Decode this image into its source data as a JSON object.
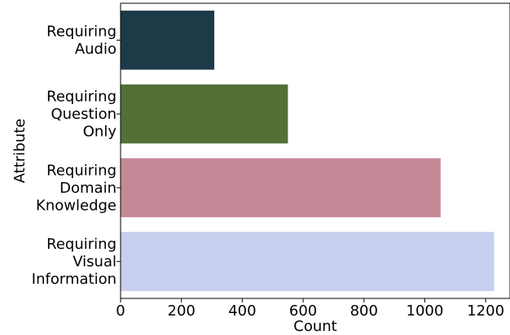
{
  "chart_data": {
    "type": "bar",
    "orientation": "horizontal",
    "categories": [
      [
        "Requiring",
        "Audio"
      ],
      [
        "Requiring",
        "Question",
        "Only"
      ],
      [
        "Requiring",
        "Domain",
        "Knowledge"
      ],
      [
        "Requiring",
        "Visual",
        "Information"
      ]
    ],
    "values": [
      308,
      550,
      1052,
      1228
    ],
    "colors": [
      "#1d3a49",
      "#537036",
      "#c68897",
      "#c7cfee"
    ],
    "xlabel": "Count",
    "ylabel": "Attribute",
    "xlim": [
      0,
      1280
    ],
    "xticks": [
      0,
      200,
      400,
      600,
      800,
      1000,
      1200
    ],
    "grid": false
  }
}
